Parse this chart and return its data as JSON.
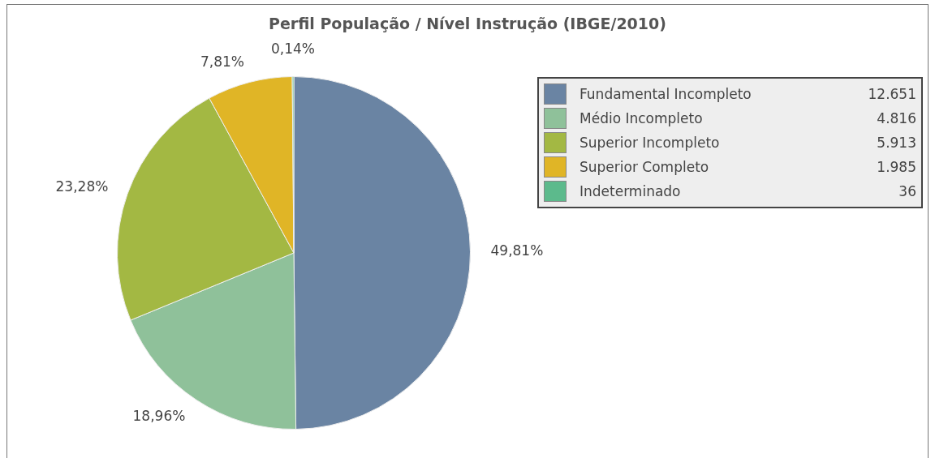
{
  "chart_data": {
    "type": "pie",
    "title": "Perfil População / Nível Instrução (IBGE/2010)",
    "categories": [
      "Fundamental Incompleto",
      "Médio Incompleto",
      "Superior Incompleto",
      "Superior Completo",
      "Indeterminado"
    ],
    "values": [
      49.81,
      18.96,
      23.28,
      7.81,
      0.14
    ],
    "annotations": [
      "12.651",
      "4.816",
      "5.913",
      "1.985",
      "36"
    ],
    "colors": [
      "#6a84a3",
      "#8fc19a",
      "#a3b843",
      "#e0b526",
      "#5cba8c"
    ],
    "value_labels": [
      "49,81%",
      "18,96%",
      "23,28%",
      "7,81%",
      "0,14%"
    ],
    "legend": "top right"
  }
}
